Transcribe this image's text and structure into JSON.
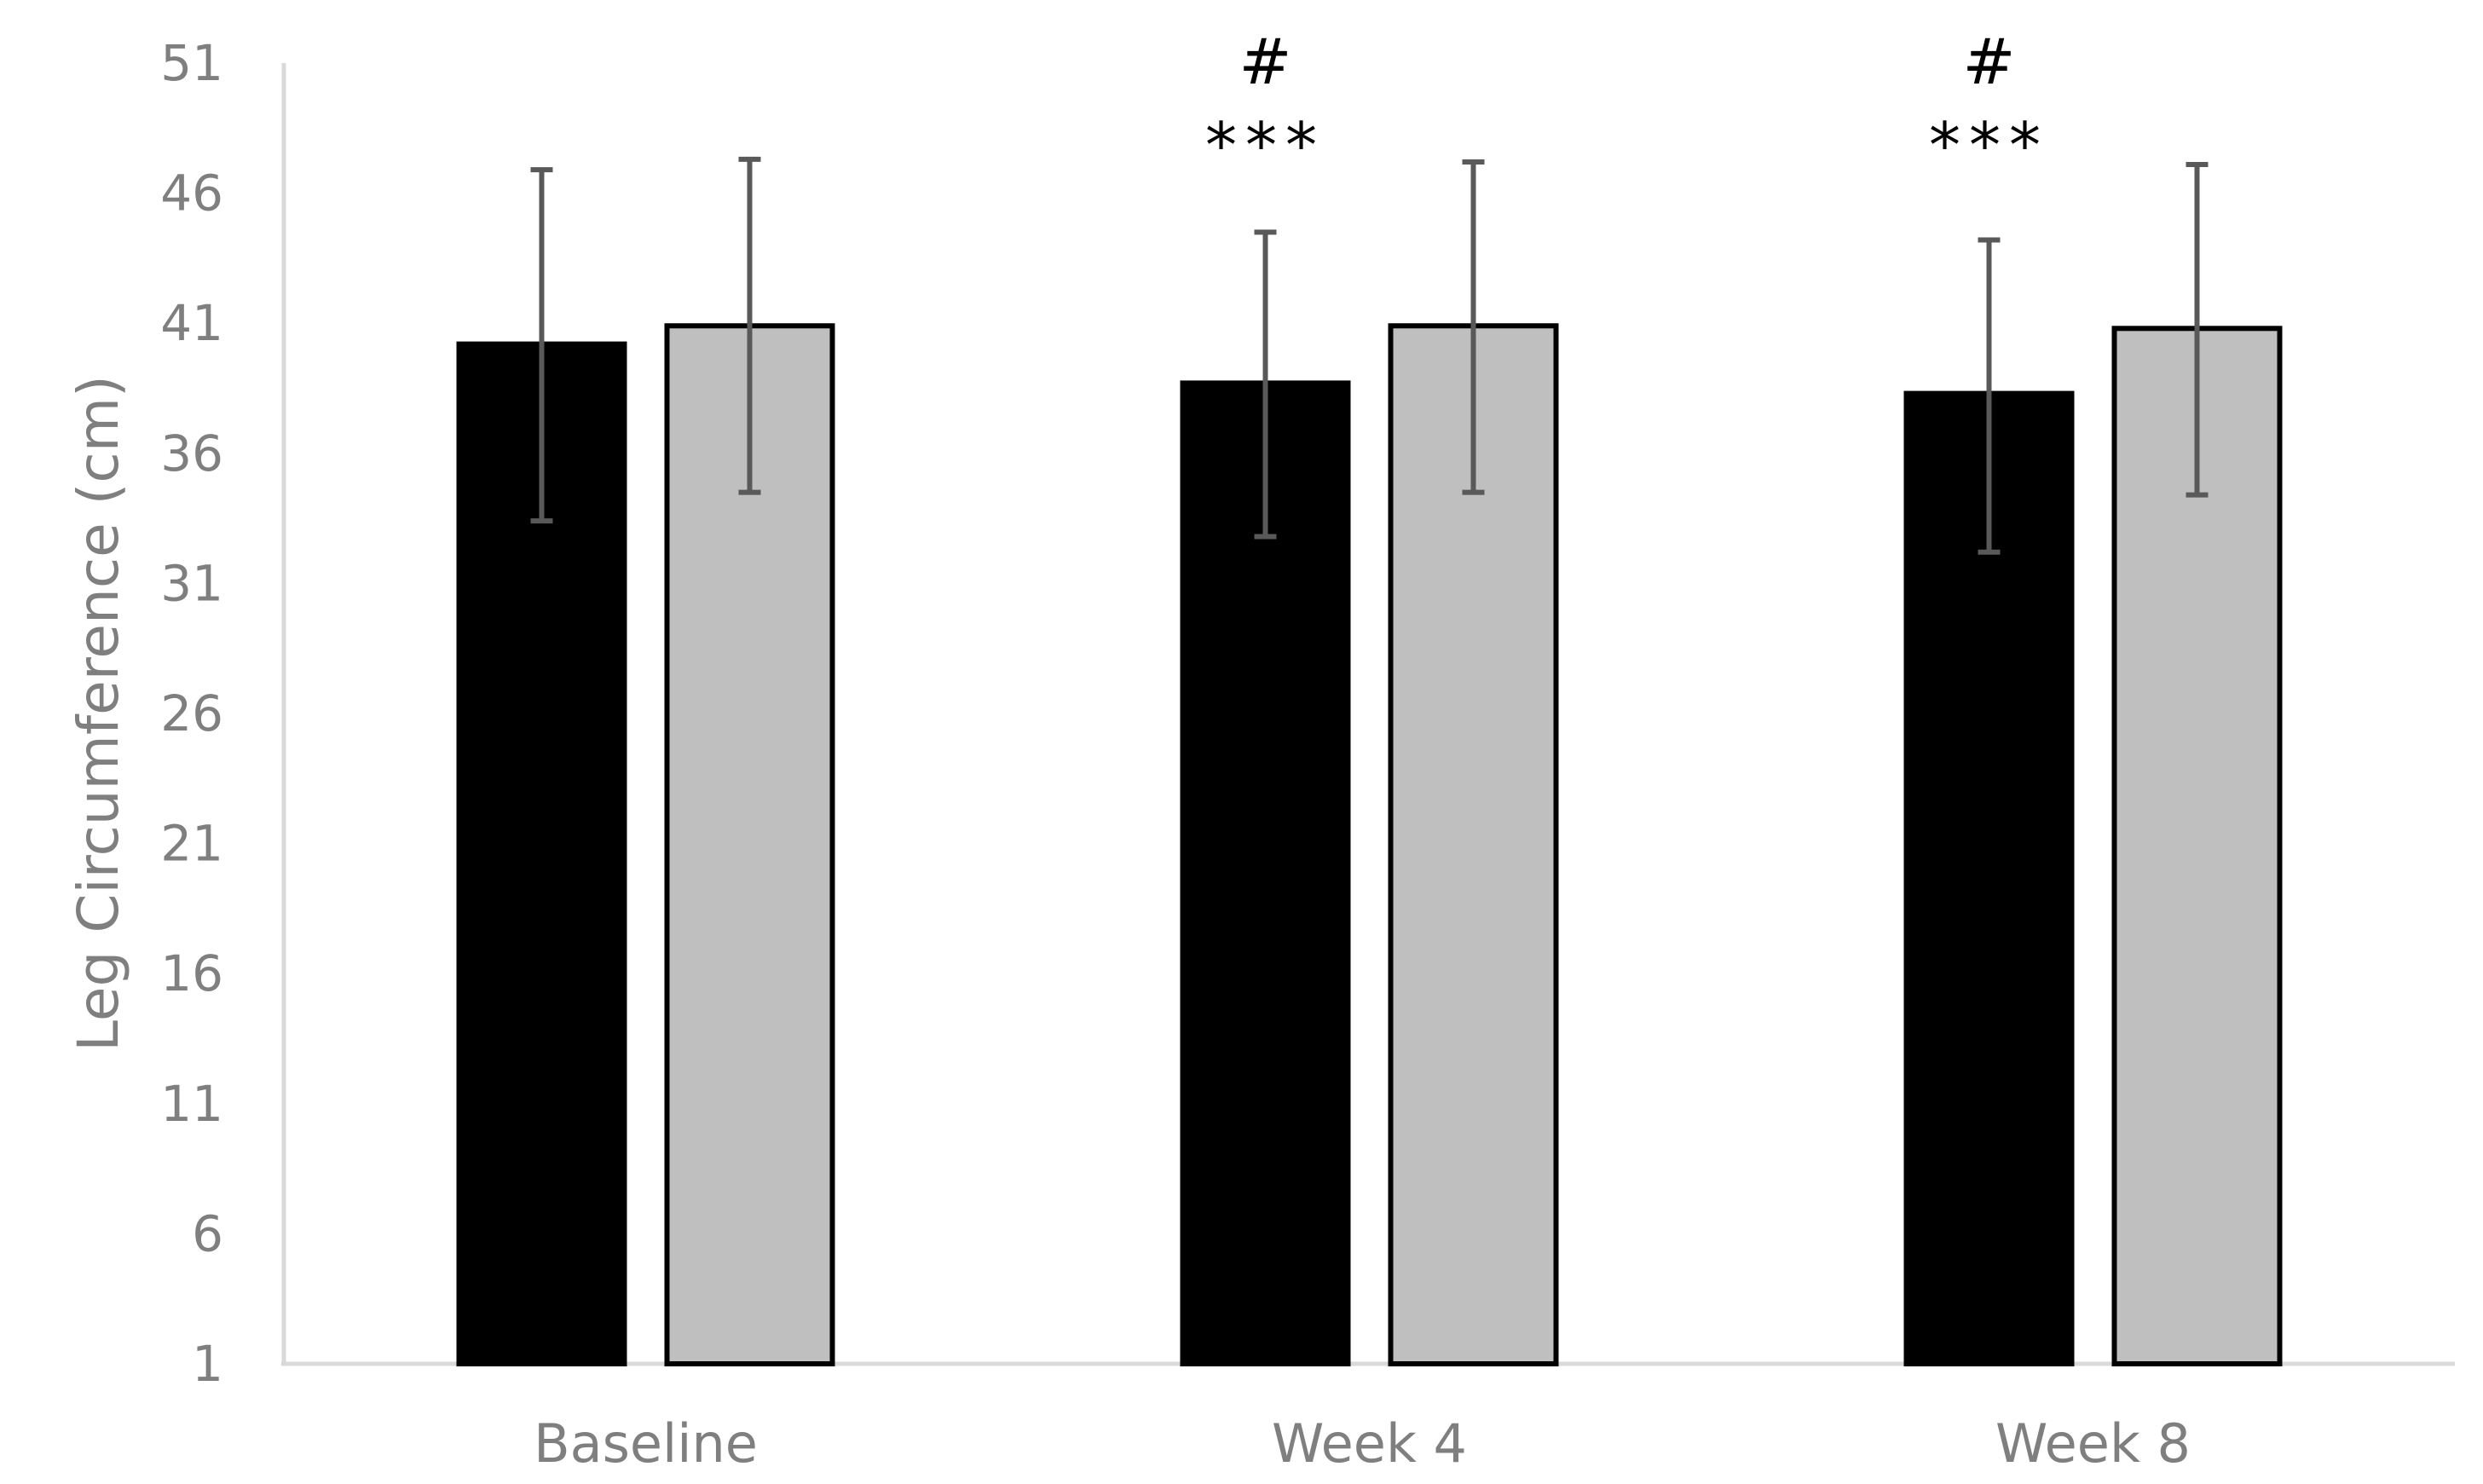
{
  "chart_data": {
    "type": "bar",
    "title": "",
    "xlabel": "",
    "ylabel": "Leg Circumference (cm)",
    "categories": [
      "Baseline",
      "Week 4",
      "Week 8"
    ],
    "ylim": [
      1,
      51
    ],
    "yticks": [
      1,
      6,
      11,
      16,
      21,
      26,
      31,
      36,
      41,
      46,
      51
    ],
    "grid": false,
    "legend": "none",
    "series": [
      {
        "color": "#000000",
        "values": [
          40.2,
          38.7,
          38.3
        ],
        "error_low": [
          33.4,
          32.8,
          32.2
        ],
        "error_high": [
          46.9,
          44.5,
          44.2
        ]
      },
      {
        "color": "#bfbfbf",
        "values": [
          40.9,
          40.9,
          40.8
        ],
        "error_low": [
          34.5,
          34.5,
          34.4
        ],
        "error_high": [
          47.3,
          47.2,
          47.1
        ]
      }
    ],
    "annotations": [
      {
        "category": "Week 4",
        "lines": [
          "#",
          "***"
        ]
      },
      {
        "category": "Week 8",
        "lines": [
          "#",
          "***"
        ]
      }
    ]
  }
}
